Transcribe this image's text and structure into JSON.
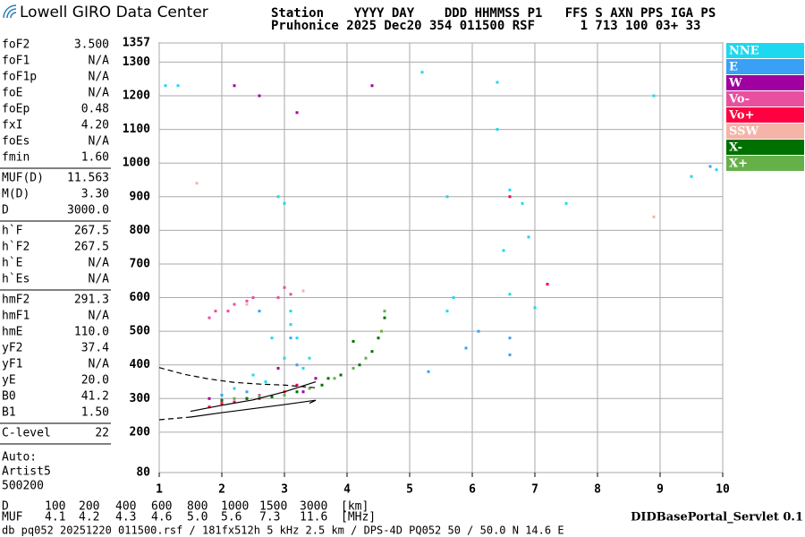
{
  "header": {
    "logo": "Lowell GIRO Data Center",
    "station_lines": [
      "Station    YYYY DAY    DDD HHMMSS P1   FFS S AXN PPS IGA PS",
      "Pruhonice 2025 Dec20 354 011500 RSF      1 713 100 03+ 33"
    ]
  },
  "parameter_groups": [
    [
      [
        "foF2",
        "3.500"
      ],
      [
        "foF1",
        "N/A"
      ],
      [
        "foF1p",
        "N/A"
      ],
      [
        "foE",
        "N/A"
      ],
      [
        "foEp",
        "0.48"
      ],
      [
        "fxI",
        "4.20"
      ],
      [
        "foEs",
        "N/A"
      ],
      [
        "fmin",
        "1.60"
      ]
    ],
    [
      [
        "MUF(D)",
        "11.563"
      ],
      [
        "M(D)",
        "3.30"
      ],
      [
        "D",
        "3000.0"
      ]
    ],
    [
      [
        "h`F",
        "267.5"
      ],
      [
        "h`F2",
        "267.5"
      ],
      [
        "h`E",
        "N/A"
      ],
      [
        "h`Es",
        "N/A"
      ]
    ],
    [
      [
        "hmF2",
        "291.3"
      ],
      [
        "hmF1",
        "N/A"
      ],
      [
        "hmE",
        "110.0"
      ],
      [
        "yF2",
        "37.4"
      ],
      [
        "yF1",
        "N/A"
      ],
      [
        "yE",
        "20.0"
      ],
      [
        "B0",
        "41.2"
      ],
      [
        "B1",
        "1.50"
      ]
    ],
    [
      [
        "C-level",
        "22"
      ]
    ]
  ],
  "notes": [
    "Auto:",
    "Artist5",
    "500200"
  ],
  "distance_table": {
    "d_label": "D",
    "d_values": [
      "100",
      "200",
      "400",
      "600",
      "800",
      "1000",
      "1500",
      "3000",
      "[km]"
    ],
    "muf_label": "MUF",
    "muf_values": [
      "4.1",
      "4.2",
      "4.3",
      "4.6",
      "5.0",
      "5.6",
      "7.3",
      "11.6",
      "[MHz]"
    ]
  },
  "servlet": "DIDBasePortal_Servlet 0.1",
  "footer": "db pq052 20251220 011500.rsf / 181fx512h 5 kHz 2.5 km / DPS-4D PQ052 50 / 50.0 N 14.6 E",
  "chart_data": {
    "type": "scatter",
    "xlim": [
      1,
      10
    ],
    "xticks": [
      1,
      2,
      3,
      4,
      5,
      6,
      7,
      8,
      9,
      10
    ],
    "ylim": [
      80,
      1357
    ],
    "yticks": [
      80,
      200,
      300,
      400,
      500,
      600,
      700,
      800,
      900,
      1000,
      1100,
      1200,
      1300,
      1357
    ],
    "grid": true,
    "series": [
      {
        "name": "NNE",
        "color": "#1ed8f0",
        "x": [
          1.1,
          1.3,
          2.9,
          3.0,
          3.1,
          3.2,
          5.2,
          5.6,
          5.6,
          5.7,
          6.4,
          6.4,
          6.5,
          6.6,
          6.6,
          6.8,
          6.9,
          7.0,
          7.5,
          8.9,
          9.5,
          9.9,
          2.5,
          2.7,
          3.3,
          3.4,
          2.2,
          2.8,
          3.0,
          3.1
        ],
        "values": [
          1230,
          1230,
          900,
          880,
          520,
          480,
          1270,
          900,
          560,
          600,
          1240,
          1100,
          740,
          920,
          610,
          880,
          780,
          570,
          880,
          1200,
          960,
          980,
          370,
          350,
          390,
          420,
          330,
          480,
          420,
          560
        ]
      },
      {
        "name": "E",
        "color": "#3aa0f5",
        "x": [
          2.6,
          3.1,
          3.2,
          6.6,
          6.6,
          6.1,
          5.9,
          5.3,
          9.8,
          2.0,
          2.4
        ],
        "values": [
          560,
          480,
          400,
          480,
          430,
          500,
          450,
          380,
          990,
          310,
          320
        ]
      },
      {
        "name": "W",
        "color": "#a000a0",
        "x": [
          2.2,
          2.6,
          2.9,
          3.2,
          4.4,
          3.3,
          1.8,
          2.4,
          3.5
        ],
        "values": [
          1230,
          1200,
          390,
          1150,
          1230,
          320,
          300,
          300,
          360
        ]
      },
      {
        "name": "Vo-",
        "color": "#e84f9f",
        "x": [
          1.8,
          1.9,
          2.1,
          2.2,
          2.5,
          2.4,
          3.0,
          2.9,
          3.1,
          2.0,
          2.6
        ],
        "values": [
          540,
          560,
          560,
          580,
          600,
          590,
          630,
          600,
          610,
          290,
          310
        ]
      },
      {
        "name": "Vo+",
        "color": "#ff0040",
        "x": [
          1.8,
          2.0,
          2.2,
          2.6,
          3.0,
          3.2,
          6.6,
          7.2
        ],
        "values": [
          275,
          285,
          290,
          300,
          320,
          340,
          900,
          640
        ]
      },
      {
        "name": "SSW",
        "color": "#f4b4a8",
        "x": [
          1.6,
          2.4,
          3.3,
          8.9
        ],
        "values": [
          940,
          580,
          620,
          840
        ]
      },
      {
        "name": "X-",
        "color": "#007000",
        "x": [
          2.0,
          2.4,
          2.8,
          3.2,
          3.6,
          3.9,
          4.2,
          4.4,
          4.5,
          4.6,
          4.1,
          3.7
        ],
        "values": [
          295,
          300,
          305,
          320,
          340,
          370,
          400,
          440,
          480,
          540,
          470,
          360
        ]
      },
      {
        "name": "X+",
        "color": "#66b04a",
        "x": [
          2.2,
          2.6,
          3.0,
          3.4,
          3.8,
          4.1,
          4.3,
          4.55,
          4.6
        ],
        "values": [
          300,
          305,
          310,
          330,
          360,
          390,
          420,
          500,
          560
        ]
      }
    ],
    "curves": [
      {
        "x": [
          1,
          1.4,
          1.8,
          2.2,
          2.6,
          3.0,
          3.5
        ],
        "values": [
          392,
          372,
          358,
          348,
          343,
          340,
          332
        ],
        "dash": true
      },
      {
        "x": [
          1,
          1.5
        ],
        "values": [
          237,
          245
        ],
        "dash": true
      },
      {
        "x": [
          1.5,
          2.0,
          2.5,
          3.0,
          3.5,
          3.4
        ],
        "values": [
          245,
          258,
          270,
          282,
          295,
          286
        ],
        "dash": false
      },
      {
        "x": [
          1.5,
          2.0,
          2.5,
          3.0,
          3.5
        ],
        "values": [
          262,
          280,
          296,
          320,
          350
        ],
        "dash": false
      }
    ]
  }
}
